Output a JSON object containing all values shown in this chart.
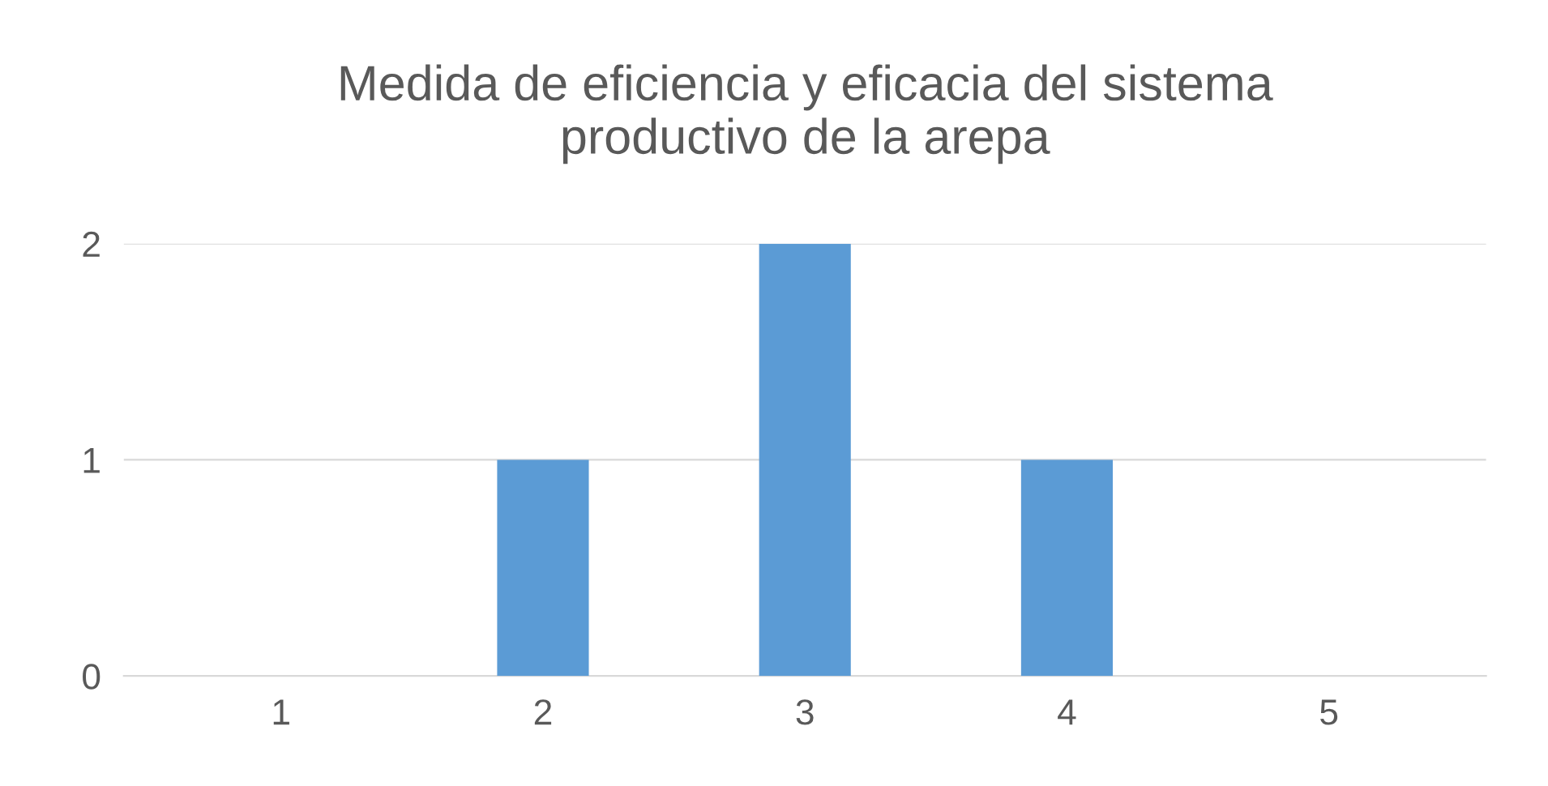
{
  "chart_data": {
    "type": "bar",
    "title": "Medida de eficiencia y eficacia del sistema\nproductivo de la arepa",
    "categories": [
      "1",
      "2",
      "3",
      "4",
      "5"
    ],
    "values": [
      0,
      1,
      2,
      1,
      0
    ],
    "color": "#5b9bd5",
    "ylim": [
      0,
      2
    ],
    "yticks": [
      0,
      1,
      2
    ],
    "grid": "y"
  }
}
